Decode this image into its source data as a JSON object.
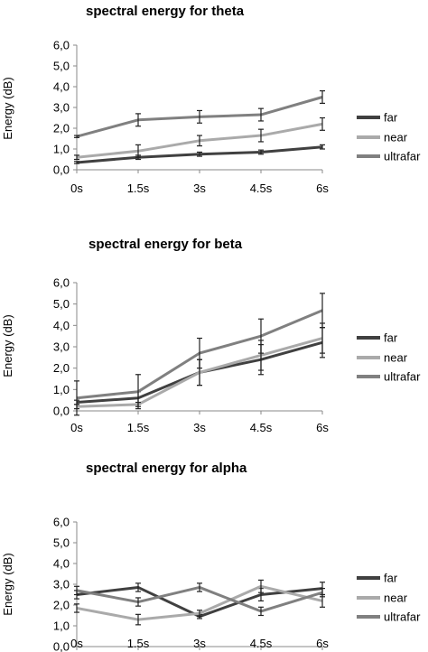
{
  "chart_data": [
    {
      "type": "line",
      "title": "spectral energy for theta",
      "xlabel": "",
      "ylabel": "Energy (dB)",
      "categories": [
        "0s",
        "1.5s",
        "3s",
        "4.5s",
        "6s"
      ],
      "ylim": [
        0,
        6
      ],
      "y_ticks": [
        "0,0",
        "1,0",
        "2,0",
        "3,0",
        "4,0",
        "5,0",
        "6,0"
      ],
      "legend_position": "right",
      "series": [
        {
          "name": "far",
          "color": "#404040",
          "values": [
            0.35,
            0.6,
            0.75,
            0.85,
            1.1
          ],
          "errors": [
            0.05,
            0.1,
            0.1,
            0.1,
            0.1
          ]
        },
        {
          "name": "near",
          "color": "#aaaaaa",
          "values": [
            0.6,
            0.9,
            1.4,
            1.65,
            2.2
          ],
          "errors": [
            0.1,
            0.3,
            0.25,
            0.3,
            0.3
          ]
        },
        {
          "name": "ultrafar",
          "color": "#808080",
          "values": [
            1.6,
            2.4,
            2.55,
            2.65,
            3.5
          ],
          "errors": [
            0.05,
            0.3,
            0.3,
            0.3,
            0.3
          ]
        }
      ]
    },
    {
      "type": "line",
      "title": "spectral energy for beta",
      "xlabel": "",
      "ylabel": "Energy (dB)",
      "categories": [
        "0s",
        "1.5s",
        "3s",
        "4.5s",
        "6s"
      ],
      "ylim": [
        0,
        6
      ],
      "y_ticks": [
        "0,0",
        "1,0",
        "2,0",
        "3,0",
        "4,0",
        "5,0",
        "6,0"
      ],
      "legend_position": "right",
      "series": [
        {
          "name": "far",
          "color": "#404040",
          "values": [
            0.4,
            0.6,
            1.8,
            2.4,
            3.2
          ],
          "errors": [
            0.1,
            0.3,
            0.6,
            0.7,
            0.7
          ]
        },
        {
          "name": "near",
          "color": "#aaaaaa",
          "values": [
            0.2,
            0.3,
            1.8,
            2.6,
            3.4
          ],
          "errors": [
            0.1,
            0.1,
            0.6,
            0.7,
            0.7
          ]
        },
        {
          "name": "ultrafar",
          "color": "#808080",
          "values": [
            0.6,
            0.9,
            2.7,
            3.5,
            4.7
          ],
          "errors": [
            0.8,
            0.8,
            0.7,
            0.8,
            0.8
          ]
        }
      ]
    },
    {
      "type": "line",
      "title": "spectral energy for alpha",
      "xlabel": "",
      "ylabel": "Energy (dB)",
      "categories": [
        "0s",
        "1.5s",
        "3s",
        "4.5s",
        "6s"
      ],
      "ylim": [
        0,
        6
      ],
      "y_ticks": [
        "0,0",
        "1,0",
        "2,0",
        "3,0",
        "4,0",
        "5,0",
        "6,0"
      ],
      "legend_position": "right",
      "series": [
        {
          "name": "far",
          "color": "#404040",
          "values": [
            2.5,
            2.85,
            1.45,
            2.5,
            2.8
          ],
          "errors": [
            0.2,
            0.2,
            0.1,
            0.3,
            0.3
          ]
        },
        {
          "name": "near",
          "color": "#aaaaaa",
          "values": [
            1.85,
            1.3,
            1.6,
            2.9,
            2.2
          ],
          "errors": [
            0.2,
            0.25,
            0.15,
            0.3,
            0.3
          ]
        },
        {
          "name": "ultrafar",
          "color": "#808080",
          "values": [
            2.7,
            2.15,
            2.85,
            1.7,
            2.6
          ],
          "errors": [
            0.2,
            0.2,
            0.2,
            0.2,
            0.2
          ]
        }
      ]
    }
  ]
}
